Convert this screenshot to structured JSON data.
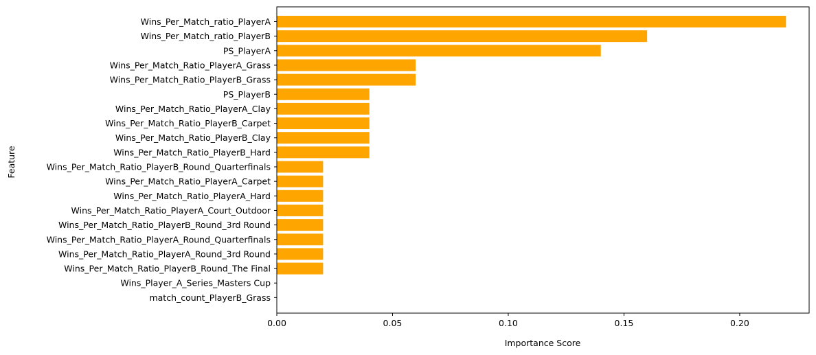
{
  "chart_data": {
    "type": "bar",
    "orientation": "horizontal",
    "xlabel": "Importance Score",
    "ylabel": "Feature",
    "xlim": [
      0.0,
      0.23
    ],
    "xticks": [
      0.0,
      0.05,
      0.1,
      0.15,
      0.2
    ],
    "xtick_labels": [
      "0.00",
      "0.05",
      "0.10",
      "0.15",
      "0.20"
    ],
    "grid": false,
    "bar_color": "#ffa500",
    "categories": [
      "Wins_Per_Match_ratio_PlayerA",
      "Wins_Per_Match_ratio_PlayerB",
      "PS_PlayerA",
      "Wins_Per_Match_Ratio_PlayerA_Grass",
      "Wins_Per_Match_Ratio_PlayerB_Grass",
      "PS_PlayerB",
      "Wins_Per_Match_Ratio_PlayerA_Clay",
      "Wins_Per_Match_Ratio_PlayerB_Carpet",
      "Wins_Per_Match_Ratio_PlayerB_Clay",
      "Wins_Per_Match_Ratio_PlayerB_Hard",
      "Wins_Per_Match_Ratio_PlayerB_Round_Quarterfinals",
      "Wins_Per_Match_Ratio_PlayerA_Carpet",
      "Wins_Per_Match_Ratio_PlayerA_Hard",
      "Wins_Per_Match_Ratio_PlayerA_Court_Outdoor",
      "Wins_Per_Match_Ratio_PlayerB_Round_3rd Round",
      "Wins_Per_Match_Ratio_PlayerA_Round_Quarterfinals",
      "Wins_Per_Match_Ratio_PlayerA_Round_3rd Round",
      "Wins_Per_Match_Ratio_PlayerB_Round_The Final",
      "Wins_Player_A_Series_Masters Cup",
      "match_count_PlayerB_Grass"
    ],
    "values": [
      0.22,
      0.16,
      0.14,
      0.06,
      0.06,
      0.04,
      0.04,
      0.04,
      0.04,
      0.04,
      0.02,
      0.02,
      0.02,
      0.02,
      0.02,
      0.02,
      0.02,
      0.02,
      0.0,
      0.0
    ]
  }
}
